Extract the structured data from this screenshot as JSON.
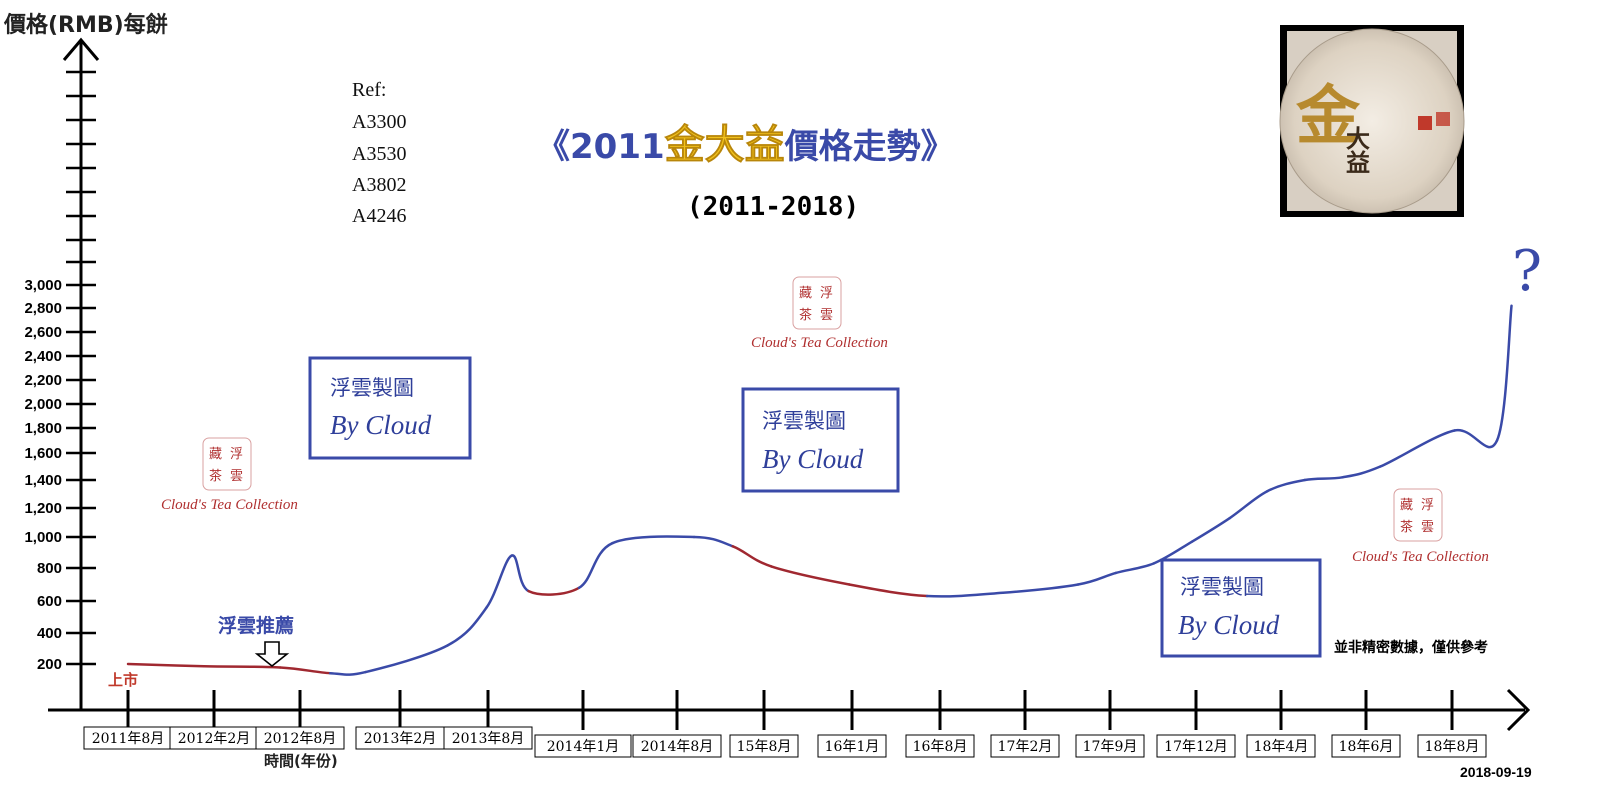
{
  "chart_data": {
    "type": "line",
    "title_prefix": "《2011",
    "title_highlight": "金大益",
    "title_suffix": "價格走勢》",
    "subtitle": "(2011-2018)",
    "ylabel": "價格(RMB)每餅",
    "xlabel": "時間(年份)",
    "y_ticks": [
      200,
      400,
      600,
      800,
      1000,
      1200,
      1400,
      1600,
      1800,
      2000,
      2200,
      2400,
      2600,
      2800,
      3000
    ],
    "y_tick_labels": [
      "200",
      "400",
      "600",
      "800",
      "1,000",
      "1,200",
      "1,400",
      "1,600",
      "1,800",
      "2,000",
      "2,200",
      "2,400",
      "2,600",
      "2,800",
      "3,000"
    ],
    "categories": [
      "2011年8月",
      "2012年2月",
      "2012年8月",
      "2013年2月",
      "2013年8月",
      "2014年1月",
      "2014年8月",
      "15年8月",
      "16年1月",
      "16年8月",
      "17年2月",
      "17年9月",
      "17年12月",
      "18年4月",
      "18年6月",
      "18年8月"
    ],
    "x": [
      0,
      1,
      2,
      2.6,
      3,
      4,
      4.5,
      4.8,
      5,
      5.6,
      6,
      7,
      7.5,
      8,
      9,
      10,
      11,
      12,
      12.5,
      13,
      13.5,
      14,
      14.5,
      15,
      15.5,
      16,
      17
    ],
    "values": [
      200,
      190,
      185,
      160,
      165,
      320,
      560,
      880,
      660,
      680,
      960,
      1000,
      940,
      810,
      700,
      630,
      650,
      700,
      770,
      830,
      970,
      1130,
      1320,
      1400,
      1420,
      1500,
      1780
    ],
    "series_tail": {
      "x": [
        17,
        18,
        19
      ],
      "values": [
        1780,
        1700,
        2820
      ]
    },
    "colors": {
      "line_red": "#a02830",
      "line_blue": "#3a4aa8"
    },
    "legend": "none",
    "grid": false
  },
  "annotations": {
    "launch": "上市",
    "recommend": "浮雲推薦",
    "question": "?",
    "disclaimer": "並非精密數據，僅供參考",
    "date": "2018-09-19"
  },
  "reference": {
    "label": "Ref:",
    "codes": [
      "A3300",
      "A3530",
      "A3802",
      "A4246"
    ]
  },
  "watermarks": {
    "box_line1": "浮雲製圖",
    "box_line2": "By Cloud",
    "seal_chars": [
      "藏",
      "浮",
      "茶",
      "雲"
    ],
    "seal_caption": "Cloud's Tea Collection"
  },
  "product_image": {
    "char_big": "金",
    "char_small": "大益"
  }
}
